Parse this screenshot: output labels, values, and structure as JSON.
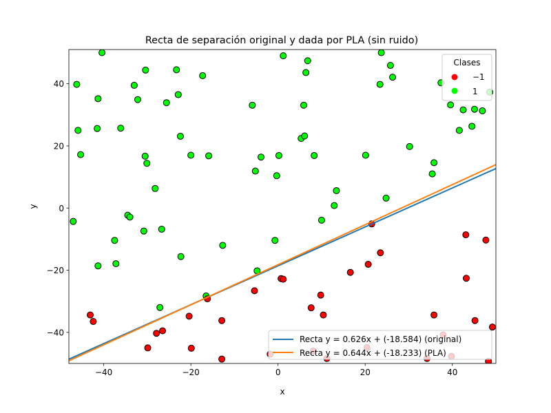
{
  "chart_data": {
    "type": "scatter",
    "title": "Recta de separación original y dada por PLA (sin ruido)",
    "xlabel": "x",
    "ylabel": "y",
    "xlim": [
      -48,
      50
    ],
    "ylim": [
      -50,
      51
    ],
    "xticks": [
      -40,
      -20,
      0,
      20,
      40
    ],
    "yticks": [
      -40,
      -20,
      0,
      20,
      40
    ],
    "xtick_labels": [
      "−40",
      "−20",
      "0",
      "20",
      "40"
    ],
    "ytick_labels": [
      "−40",
      "−20",
      "0",
      "20",
      "40"
    ],
    "grid": false,
    "scatter_legend": {
      "title": "Clases",
      "placement": "top-right",
      "entries": [
        {
          "label": "−1",
          "color": "#ff0000"
        },
        {
          "label": "1",
          "color": "#00ff00"
        }
      ]
    },
    "lines_legend": {
      "placement": "bottom-right",
      "entries": [
        {
          "label": "Recta y = 0.626x + (-18.584) (original)",
          "color": "#1f77b4",
          "slope": 0.626,
          "intercept": -18.584
        },
        {
          "label": "Recta y = 0.644x + (-18.233) (PLA)",
          "color": "#ff7f0e",
          "slope": 0.644,
          "intercept": -18.233
        }
      ]
    },
    "series": [
      {
        "class": "1",
        "color": "#00ff00",
        "points": [
          [
            -47,
            -4.3
          ],
          [
            -46.2,
            39.8
          ],
          [
            -45.9,
            25
          ],
          [
            -45.3,
            17.2
          ],
          [
            -40.4,
            50
          ],
          [
            -41.3,
            35.2
          ],
          [
            -41.5,
            25.6
          ],
          [
            -41.3,
            -18.6
          ],
          [
            -37.5,
            -10.4
          ],
          [
            -37.2,
            -17.9
          ],
          [
            -36.1,
            25.7
          ],
          [
            -34.5,
            -2.3
          ],
          [
            -34,
            -2.9
          ],
          [
            -33,
            39.5
          ],
          [
            -32.2,
            34.9
          ],
          [
            -30.8,
            -7.4
          ],
          [
            -30.5,
            16.7
          ],
          [
            -30.1,
            14.4
          ],
          [
            -30.4,
            44.4
          ],
          [
            -28.2,
            6.3
          ],
          [
            -27.1,
            -32
          ],
          [
            -26.7,
            -6.8
          ],
          [
            -25.6,
            33.9
          ],
          [
            -23.3,
            44.5
          ],
          [
            -22.9,
            36.5
          ],
          [
            -22.4,
            23.1
          ],
          [
            -22.3,
            -15.6
          ],
          [
            -20,
            17
          ],
          [
            -17.3,
            42.6
          ],
          [
            -16.5,
            -28.3
          ],
          [
            -15.9,
            16.8
          ],
          [
            -12.7,
            -12
          ],
          [
            -5.9,
            33.1
          ],
          [
            -5.2,
            11.9
          ],
          [
            -4.8,
            -20.2
          ],
          [
            -3.9,
            16.4
          ],
          [
            -0.7,
            -10.4
          ],
          [
            -0.3,
            10.4
          ],
          [
            0.2,
            16.9
          ],
          [
            1.2,
            49
          ],
          [
            5.3,
            22.4
          ],
          [
            5.9,
            33.1
          ],
          [
            6.1,
            23.2
          ],
          [
            6.4,
            43.6
          ],
          [
            6.8,
            47.4
          ],
          [
            8.3,
            16.9
          ],
          [
            10,
            -3.9
          ],
          [
            12.9,
            0.8
          ],
          [
            13.4,
            5.6
          ],
          [
            20.1,
            17
          ],
          [
            23.4,
            39.8
          ],
          [
            23.7,
            50
          ],
          [
            24.8,
            3.2
          ],
          [
            25.8,
            45.9
          ],
          [
            26.3,
            42.1
          ],
          [
            30.2,
            19.8
          ],
          [
            35.4,
            11
          ],
          [
            35.8,
            14.6
          ],
          [
            37.4,
            40.3
          ],
          [
            39.6,
            33.2
          ],
          [
            41.6,
            25
          ],
          [
            42.5,
            31.6
          ],
          [
            44.5,
            26.3
          ],
          [
            45.1,
            31.8
          ],
          [
            46.9,
            31.3
          ],
          [
            48.6,
            37.3
          ]
        ]
      },
      {
        "class": "-1",
        "color": "#ff0000",
        "points": [
          [
            -43.1,
            -34.4
          ],
          [
            -42.4,
            -36.5
          ],
          [
            -29.9,
            -45
          ],
          [
            -27.9,
            -40.3
          ],
          [
            -26.5,
            -39.5
          ],
          [
            -20.4,
            -34.8
          ],
          [
            -19.9,
            -45.1
          ],
          [
            -16.2,
            -29.2
          ],
          [
            -12.9,
            -36.2
          ],
          [
            -12.9,
            -48.6
          ],
          [
            -5.4,
            -26.6
          ],
          [
            -1.8,
            -47
          ],
          [
            0.7,
            -22.7
          ],
          [
            1.2,
            -22.9
          ],
          [
            7.6,
            -32.1
          ],
          [
            8.1,
            -46
          ],
          [
            9.8,
            -28
          ],
          [
            10.4,
            -34.4
          ],
          [
            11.2,
            -48.4
          ],
          [
            16.6,
            -20.7
          ],
          [
            20.4,
            -44.9
          ],
          [
            20.7,
            -18.1
          ],
          [
            21.5,
            -5.1
          ],
          [
            23.5,
            -14.4
          ],
          [
            34.2,
            -48.4
          ],
          [
            35.8,
            -34.4
          ],
          [
            37.9,
            -40.8
          ],
          [
            39.8,
            -47.7
          ],
          [
            43.1,
            -8.6
          ],
          [
            43.2,
            -22.6
          ],
          [
            45.2,
            -36.2
          ],
          [
            47.7,
            -10.3
          ],
          [
            48.3,
            -49.3
          ],
          [
            49.2,
            -38.3
          ]
        ]
      }
    ]
  }
}
